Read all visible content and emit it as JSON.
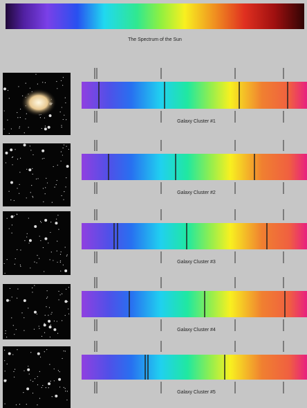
{
  "title": "The Spectrum of the Sun",
  "panels": [
    {
      "label": "Galaxy Cluster #1"
    },
    {
      "label": "Galaxy Cluster #2"
    },
    {
      "label": "Galaxy Cluster #3"
    },
    {
      "label": "Galaxy Cluster #4"
    },
    {
      "label": "Galaxy Cluster #5"
    }
  ]
}
